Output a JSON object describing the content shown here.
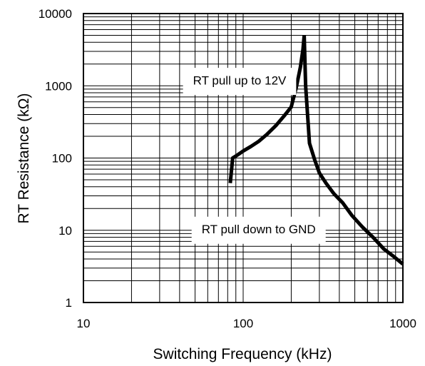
{
  "chart_data": {
    "type": "line",
    "xlabel": "Switching Frequency (kHz)",
    "ylabel": "RT Resistance (kΩ)",
    "x_scale": "log",
    "y_scale": "log",
    "xlim": [
      10,
      1000
    ],
    "ylim": [
      1,
      10000
    ],
    "x_ticks": [
      10,
      100,
      1000
    ],
    "x_tick_labels": [
      "10",
      "100",
      "1000"
    ],
    "y_ticks": [
      1,
      10,
      100,
      1000,
      10000
    ],
    "y_tick_labels": [
      "1",
      "10",
      "100",
      "1000",
      "10000"
    ],
    "grid": true,
    "annotations": [
      {
        "text": "RT pull up to 12V",
        "x": 95,
        "y": 1150
      },
      {
        "text": "RT pull down to GND",
        "x": 125,
        "y": 10
      }
    ],
    "series": [
      {
        "color": "#000000",
        "segments": [
          {
            "x": [
              83,
              86,
              92,
              100,
              112,
              125,
              140,
              160,
              180,
              200,
              215,
              228,
              237,
              241
            ],
            "y": [
              45,
              100,
              110,
              125,
              145,
              170,
              210,
              280,
              380,
              510,
              950,
              1800,
              3200,
              5000
            ]
          },
          {
            "x": [
              241,
              246,
              260,
              280,
              300,
              330,
              370,
              420,
              480,
              560,
              650,
              760,
              880,
              1000
            ],
            "y": [
              5000,
              1000,
              160,
              95,
              62,
              45,
              32,
              24,
              16,
              11,
              8,
              5.5,
              4.3,
              3.4
            ]
          }
        ]
      }
    ]
  }
}
